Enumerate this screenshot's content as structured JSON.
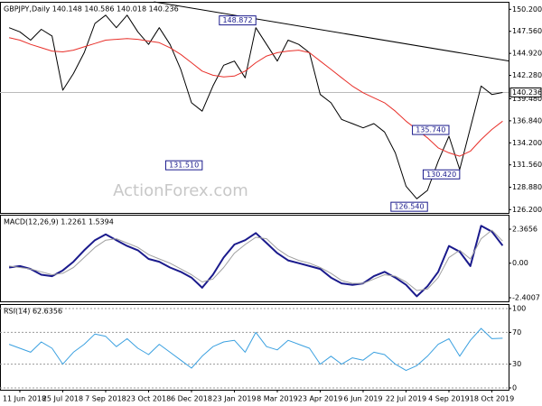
{
  "chart_data": [
    {
      "type": "line",
      "title": "GBPJPY,Daily 140.148 140.586 140.018 140.236",
      "watermark": "ActionForex.com",
      "ylim": [
        125.8,
        151.1
      ],
      "yticks": [
        {
          "value": 150.2,
          "label": "150.200"
        },
        {
          "value": 147.56,
          "label": "147.560"
        },
        {
          "value": 144.92,
          "label": "144.920"
        },
        {
          "value": 142.28,
          "label": "142.280"
        },
        {
          "value": 139.48,
          "label": "139.480"
        },
        {
          "value": 136.84,
          "label": "136.840"
        },
        {
          "value": 134.2,
          "label": "134.200"
        },
        {
          "value": 131.56,
          "label": "131.560"
        },
        {
          "value": 128.88,
          "label": "128.880"
        },
        {
          "value": 126.2,
          "label": "126.200"
        }
      ],
      "grid": false,
      "series": [
        {
          "color": "#000000",
          "width": 1,
          "values": [
            148,
            147.5,
            146.5,
            147.8,
            147,
            140.5,
            142.5,
            145,
            148.5,
            149.5,
            148,
            149.5,
            147.5,
            146,
            148,
            146,
            143,
            139,
            138,
            141,
            143.5,
            144,
            142,
            148,
            146,
            144,
            146.5,
            146,
            145,
            140,
            139,
            137,
            136.5,
            136,
            136.5,
            135.5,
            133,
            129,
            127.5,
            128.5,
            132,
            135,
            131,
            136,
            141,
            140,
            140.236
          ]
        },
        {
          "color": "#e8302a",
          "width": 1,
          "values": [
            146.8,
            146.5,
            146,
            145.6,
            145.2,
            145.1,
            145.3,
            145.7,
            146.1,
            146.5,
            146.6,
            146.7,
            146.6,
            146.4,
            146.2,
            145.6,
            144.8,
            143.8,
            142.8,
            142.3,
            142.1,
            142.2,
            142.8,
            143.8,
            144.6,
            145,
            145.2,
            145.3,
            145,
            144,
            143,
            142,
            141,
            140.2,
            139.6,
            139,
            138,
            136.8,
            135.8,
            134.8,
            133.6,
            133,
            132.6,
            133.2,
            134.6,
            135.8,
            136.8
          ]
        }
      ],
      "trendline": {
        "color": "#000000",
        "x": [
          13.5,
          46.6
        ],
        "values": [
          151.1,
          144.0
        ]
      },
      "annotations": [
        {
          "x": 23,
          "value": 148.872,
          "label": "148.872"
        },
        {
          "x": 18,
          "value": 131.51,
          "label": "131.510"
        },
        {
          "x": 41,
          "value": 135.74,
          "label": "135.740"
        },
        {
          "x": 42,
          "value": 130.42,
          "label": "130.420"
        },
        {
          "x": 39,
          "value": 126.54,
          "label": "126.540"
        }
      ],
      "last_price": {
        "value": 140.236,
        "label": "140.236"
      }
    },
    {
      "type": "line",
      "title": "MACD(12,26,9) 1.2261 1.5394",
      "ylim": [
        -2.65,
        3.37
      ],
      "yticks": [
        2.3656,
        {
          "value": 0,
          "label": "0.00"
        },
        -2.4007
      ],
      "grid": false,
      "series": [
        {
          "color": "#1a1a8c",
          "width": 2,
          "values": [
            -0.3,
            -0.2,
            -0.4,
            -0.8,
            -0.9,
            -0.5,
            0.1,
            0.9,
            1.6,
            2.0,
            1.6,
            1.2,
            0.9,
            0.3,
            0.1,
            -0.3,
            -0.6,
            -1.0,
            -1.7,
            -0.8,
            0.4,
            1.3,
            1.6,
            2.1,
            1.4,
            0.7,
            0.2,
            0.0,
            -0.2,
            -0.4,
            -1.0,
            -1.4,
            -1.5,
            -1.4,
            -0.9,
            -0.6,
            -1.0,
            -1.5,
            -2.3,
            -1.6,
            -0.6,
            1.2,
            0.8,
            -0.2,
            2.6,
            2.2,
            1.2261
          ]
        },
        {
          "color": "#a0a0a0",
          "width": 1,
          "values": [
            -0.2,
            -0.3,
            -0.4,
            -0.6,
            -0.8,
            -0.7,
            -0.3,
            0.4,
            1.1,
            1.6,
            1.7,
            1.4,
            1.1,
            0.6,
            0.3,
            0.0,
            -0.4,
            -0.8,
            -1.3,
            -1.1,
            -0.3,
            0.7,
            1.3,
            1.8,
            1.7,
            1.0,
            0.5,
            0.2,
            0.0,
            -0.3,
            -0.7,
            -1.2,
            -1.4,
            -1.4,
            -1.1,
            -0.8,
            -0.9,
            -1.3,
            -1.9,
            -1.8,
            -1.0,
            0.4,
            0.9,
            0.3,
            1.7,
            2.3,
            1.5394
          ]
        }
      ]
    },
    {
      "type": "line",
      "title": "RSI(14) 62.6356",
      "ylim": [
        -2.3,
        105.7
      ],
      "yticks": [
        100,
        70,
        30,
        0
      ],
      "grid": true,
      "series": [
        {
          "color": "#3aa0e0",
          "width": 1,
          "values": [
            55,
            50,
            45,
            58,
            50,
            30,
            45,
            55,
            68,
            65,
            52,
            62,
            50,
            42,
            55,
            45,
            35,
            25,
            40,
            52,
            58,
            60,
            45,
            70,
            52,
            48,
            60,
            55,
            50,
            30,
            40,
            30,
            38,
            35,
            45,
            42,
            30,
            22,
            28,
            40,
            55,
            62,
            40,
            60,
            75,
            62,
            62.6356
          ]
        }
      ],
      "categories": [
        null,
        "11 Jun 2018",
        null,
        null,
        null,
        "25 Jul 2018",
        null,
        null,
        null,
        "7 Sep 2018",
        null,
        null,
        null,
        "23 Oct 2018",
        null,
        null,
        null,
        "6 Dec 2018",
        null,
        null,
        null,
        "23 Jan 2019",
        null,
        null,
        null,
        "8 Mar 2019",
        null,
        null,
        null,
        "23 Apr 2019",
        null,
        null,
        null,
        "6 Jun 2019",
        null,
        null,
        null,
        "22 Jul 2019",
        null,
        null,
        null,
        "4 Sep 2019",
        null,
        null,
        null,
        "18 Oct 2019",
        null
      ]
    }
  ]
}
